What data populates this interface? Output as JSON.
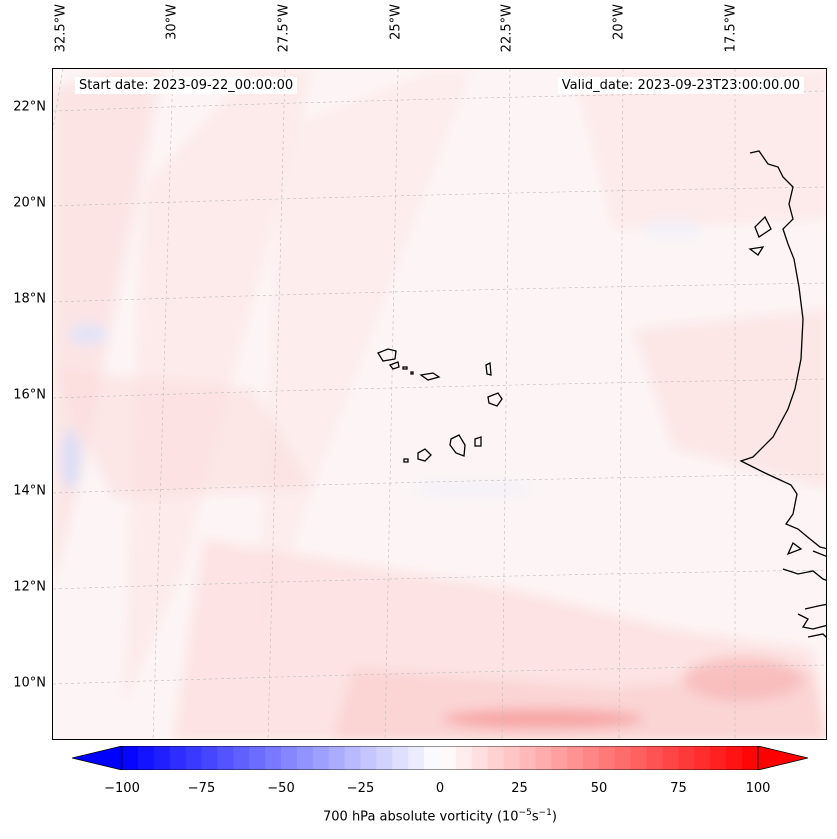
{
  "map": {
    "start_date": "Start date: 2023-09-22_00:00:00",
    "valid_date": "Valid_date: 2023-09-23T23:00:00.00",
    "latitude_labels": [
      "22°N",
      "20°N",
      "18°N",
      "16°N",
      "14°N",
      "12°N",
      "10°N"
    ],
    "longitude_labels": [
      "32.5°W",
      "30°W",
      "27.5°W",
      "25°W",
      "22.5°W",
      "20°W",
      "17.5°W"
    ],
    "field": "700 hPa absolute vorticity",
    "region": "Cabo Verde and West African coast"
  },
  "colorbar": {
    "label_prefix": "700 hPa absolute vorticity (10",
    "label_exp1": "−5",
    "label_mid": "s",
    "label_exp2": "−1",
    "label_suffix": ")",
    "min": -100,
    "max": 100,
    "ticks": [
      "−100",
      "−75",
      "−50",
      "−25",
      "0",
      "25",
      "50",
      "75",
      "100"
    ],
    "tick_values": [
      -100,
      -75,
      -50,
      -25,
      0,
      25,
      50,
      75,
      100
    ],
    "colors": {
      "negative": "#0000ff",
      "zero": "#ffffff",
      "positive": "#ff0000"
    }
  }
}
